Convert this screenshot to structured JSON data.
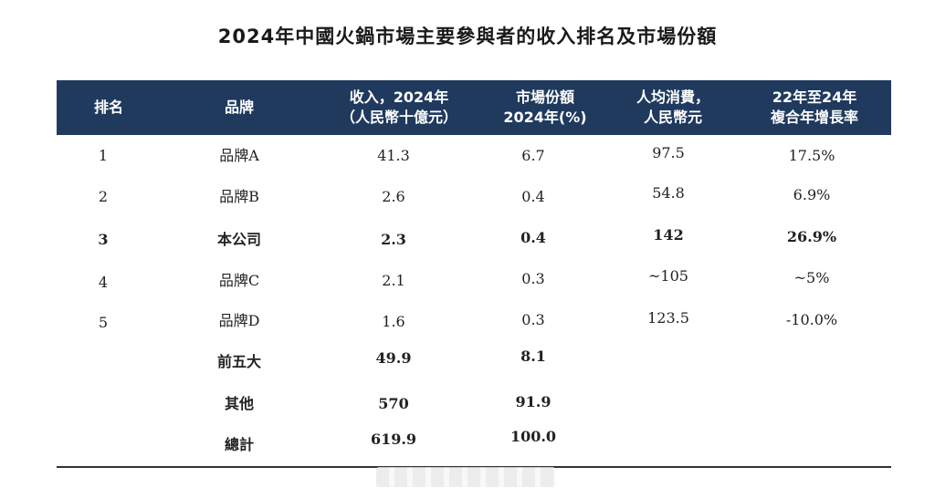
{
  "title": "2024年中國火鍋市場主要參與者的收入排名及市場份額",
  "headers": [
    {
      "line1": "排名",
      "line2": ""
    },
    {
      "line1": "品牌",
      "line2": ""
    },
    {
      "line1": "收入，2024年",
      "line2": "（人民幣十億元）"
    },
    {
      "line1": "市場份額",
      "line2": "2024年(%)"
    },
    {
      "line1": "人均消費，",
      "line2": "人民幣元"
    },
    {
      "line1": "22年至24年",
      "line2": "複合年增長率"
    }
  ],
  "rows": [
    {
      "rank": "1",
      "brand": "品牌A",
      "revenue": "41.3",
      "share": "6.7",
      "per_capita": "97.5",
      "cagr": "17.5%"
    },
    {
      "rank": "2",
      "brand": "品牌B",
      "revenue": "2.6",
      "share": "0.4",
      "per_capita": "54.8",
      "cagr": "6.9%"
    },
    {
      "rank": "3",
      "brand": "本公司",
      "revenue": "2.3",
      "share": "0.4",
      "per_capita": "142",
      "cagr": "26.9%"
    },
    {
      "rank": "4",
      "brand": "品牌C",
      "revenue": "2.1",
      "share": "0.3",
      "per_capita": "~105",
      "cagr": "~5%"
    },
    {
      "rank": "5",
      "brand": "品牌D",
      "revenue": "1.6",
      "share": "0.3",
      "per_capita": "123.5",
      "cagr": "-10.0%"
    }
  ],
  "summary": [
    {
      "label": "前五大",
      "revenue": "49.9",
      "share": "8.1"
    },
    {
      "label": "其他",
      "revenue": "570",
      "share": "91.9"
    },
    {
      "label": "總計",
      "revenue": "619.9",
      "share": "100.0"
    }
  ]
}
